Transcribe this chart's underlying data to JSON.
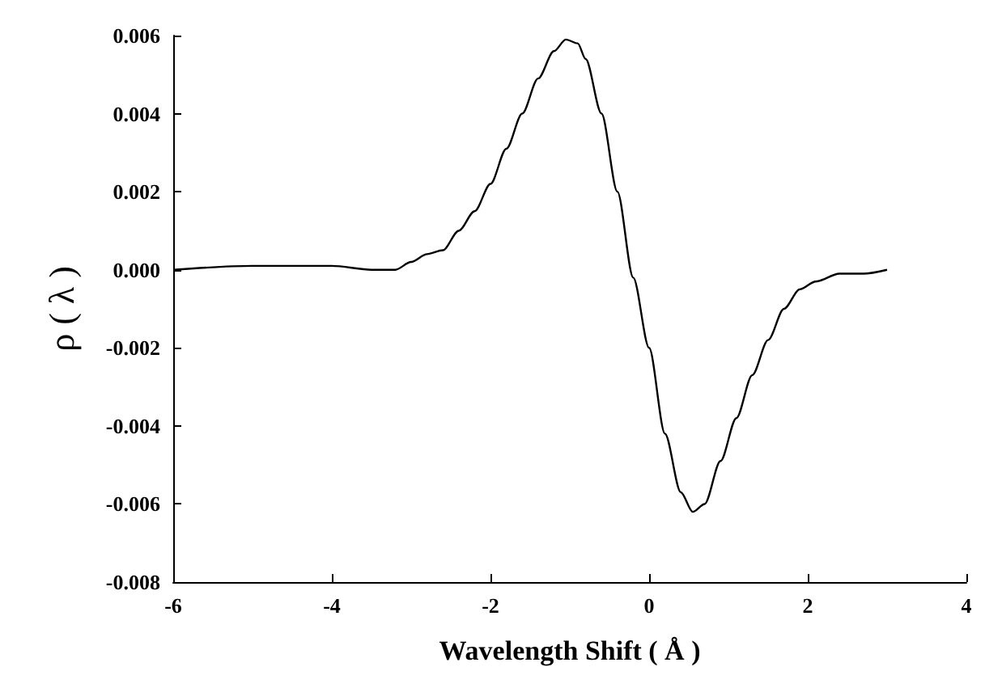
{
  "chart_data": {
    "type": "line",
    "xlabel": "Wavelength Shift ( Å )",
    "ylabel": "ρ ( λ )",
    "x": [
      -6,
      -5,
      -4.5,
      -4,
      -3.5,
      -3.2,
      -3,
      -2.8,
      -2.6,
      -2.4,
      -2.2,
      -2,
      -1.8,
      -1.6,
      -1.4,
      -1.2,
      -1.05,
      -0.9,
      -0.8,
      -0.6,
      -0.4,
      -0.2,
      0,
      0.2,
      0.4,
      0.55,
      0.7,
      0.9,
      1.1,
      1.3,
      1.5,
      1.7,
      1.9,
      2.1,
      2.4,
      2.7,
      3
    ],
    "series": [
      {
        "color": "#000000",
        "values": [
          0,
          0.0001,
          0.0001,
          0.0001,
          0,
          0,
          0.0002,
          0.0004,
          0.0005,
          0.001,
          0.0015,
          0.0022,
          0.0031,
          0.004,
          0.0049,
          0.0056,
          0.0059,
          0.0058,
          0.0054,
          0.004,
          0.002,
          -0.0002,
          -0.002,
          -0.0042,
          -0.0057,
          -0.0062,
          -0.006,
          -0.0049,
          -0.0038,
          -0.0027,
          -0.0018,
          -0.001,
          -0.0005,
          -0.0003,
          -0.0001,
          -0.0001,
          0
        ]
      }
    ],
    "xlim": [
      -6,
      4
    ],
    "xticks": [
      -6,
      -4,
      -2,
      0,
      2,
      4
    ],
    "ylim": [
      -0.008,
      0.006
    ],
    "yticks": [
      {
        "value": -0.008,
        "label": "-0.008"
      },
      {
        "value": -0.006,
        "label": "-0.006"
      },
      {
        "value": -0.004,
        "label": "-0.004"
      },
      {
        "value": -0.002,
        "label": "-0.002"
      },
      {
        "value": 0,
        "label": "0.000"
      },
      {
        "value": 0.002,
        "label": "0.002"
      },
      {
        "value": 0.004,
        "label": "0.004"
      },
      {
        "value": 0.006,
        "label": "0.006"
      }
    ],
    "grid": false,
    "marker": "none",
    "line_style": "solid"
  }
}
